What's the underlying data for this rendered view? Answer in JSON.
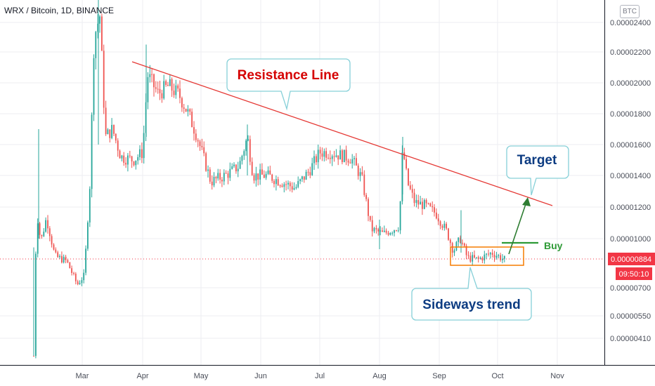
{
  "header": {
    "title": "WRX / Bitcoin, 1D, BINANCE",
    "currency_badge": "BTC"
  },
  "price_labels": {
    "current_price": "0.00000884",
    "countdown": "09:50:10"
  },
  "annotations": {
    "resistance_label": "Resistance Line",
    "target_label": "Target",
    "buy_label": "Buy",
    "sideways_label": "Sideways trend"
  },
  "colors": {
    "up": "#26a69a",
    "down": "#ef5350",
    "resistance": "#e53935",
    "target_arrow": "#2e7d32",
    "buy": "#2e9a36",
    "range_box": "#f57c00",
    "callout_border": "#86d0d8",
    "resistance_text": "#d50000",
    "callout_text": "#0d3c82",
    "price_label_bg": "#f23645",
    "grid": "#eceef2"
  },
  "chart_data": {
    "type": "candlestick",
    "title": "WRX / Bitcoin, 1D, BINANCE",
    "ylabel": "BTC",
    "ylim": [
      2.9e-06,
      2.6e-06
    ],
    "y_ticks": [
      "0.00002400",
      "0.00002200",
      "0.00002000",
      "0.00001800",
      "0.00001600",
      "0.00001400",
      "0.00001200",
      "0.00001000",
      "0.00000884",
      "0.00000700",
      "0.00000550",
      "0.00000410"
    ],
    "x_ticks": [
      "Mar",
      "Apr",
      "May",
      "Jun",
      "Jul",
      "Aug",
      "Sep",
      "Oct",
      "Nov"
    ],
    "grid": true,
    "approx_closes": [
      {
        "x": "Feb",
        "y": 9.2e-06
      },
      {
        "x": "Mar",
        "y": 7.6e-06
      },
      {
        "x": "Mar",
        "y": 2e-05
      },
      {
        "x": "Mar",
        "y": 1.55e-05
      },
      {
        "x": "Apr",
        "y": 2e-05
      },
      {
        "x": "May",
        "y": 1.4e-05
      },
      {
        "x": "Jun",
        "y": 1.35e-05
      },
      {
        "x": "Jul",
        "y": 1.55e-05
      },
      {
        "x": "Aug",
        "y": 1.05e-05
      },
      {
        "x": "Aug",
        "y": 1.45e-05
      },
      {
        "x": "Sep",
        "y": 9.5e-06
      },
      {
        "x": "Oct",
        "y": 8.8e-06
      }
    ],
    "resistance_line": {
      "from": {
        "x": "Apr",
        "y": 2.12e-05
      },
      "to": {
        "x": "Oct",
        "y": 1.21e-05
      }
    },
    "buy_level": 9.7e-06,
    "range_box": {
      "low": 8.2e-06,
      "high": 9.4e-06
    }
  }
}
